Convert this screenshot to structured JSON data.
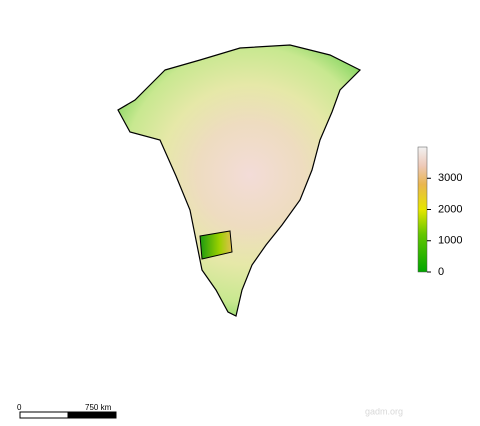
{
  "legend": {
    "lim": [
      0,
      4000
    ],
    "ticks": [
      0,
      1000,
      2000,
      3000
    ]
  },
  "scale_bar": {
    "start": "0",
    "end": "750 km"
  },
  "watermark": "gadm.org"
}
